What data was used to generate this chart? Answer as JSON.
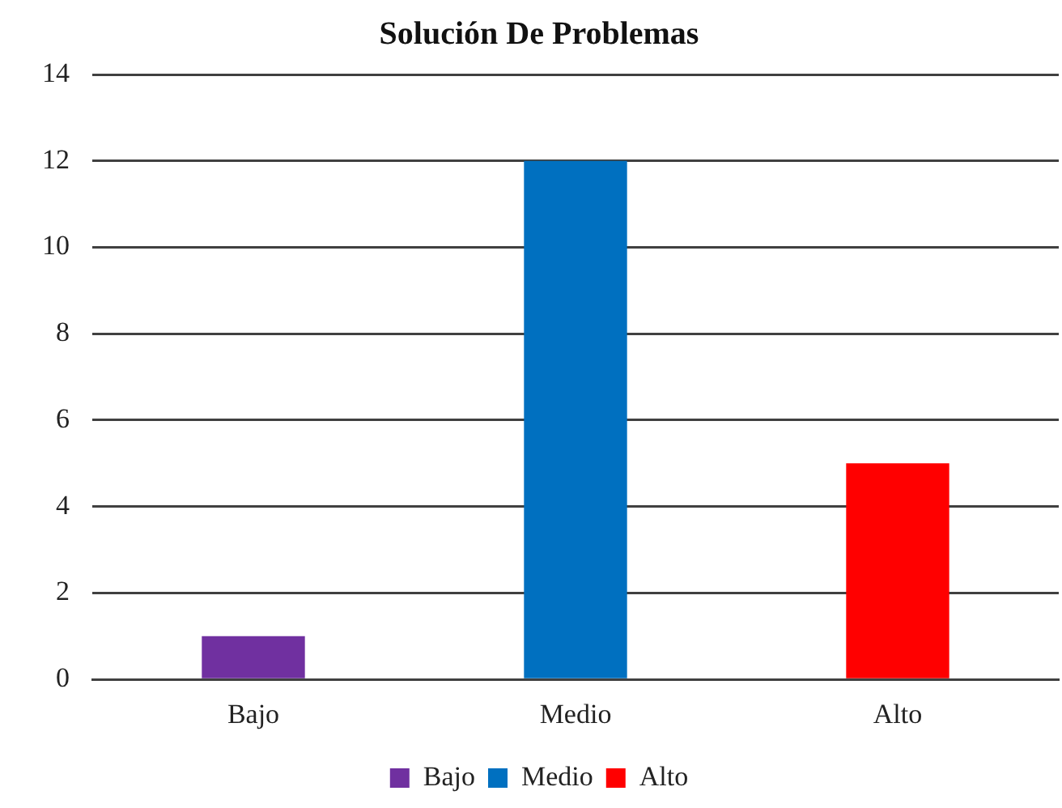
{
  "chart_data": {
    "type": "bar",
    "title": "Solución De Problemas",
    "categories": [
      "Bajo",
      "Medio",
      "Alto"
    ],
    "series": [
      {
        "name": "Bajo",
        "color": "#7030a0",
        "values": [
          1,
          null,
          null
        ]
      },
      {
        "name": "Medio",
        "color": "#0070c0",
        "values": [
          null,
          12,
          null
        ]
      },
      {
        "name": "Alto",
        "color": "#ff0000",
        "values": [
          null,
          null,
          5
        ]
      }
    ],
    "ylim": [
      0,
      14
    ],
    "yticks": [
      0,
      2,
      4,
      6,
      8,
      10,
      12,
      14
    ],
    "grid": "y",
    "legend": "bottom"
  }
}
